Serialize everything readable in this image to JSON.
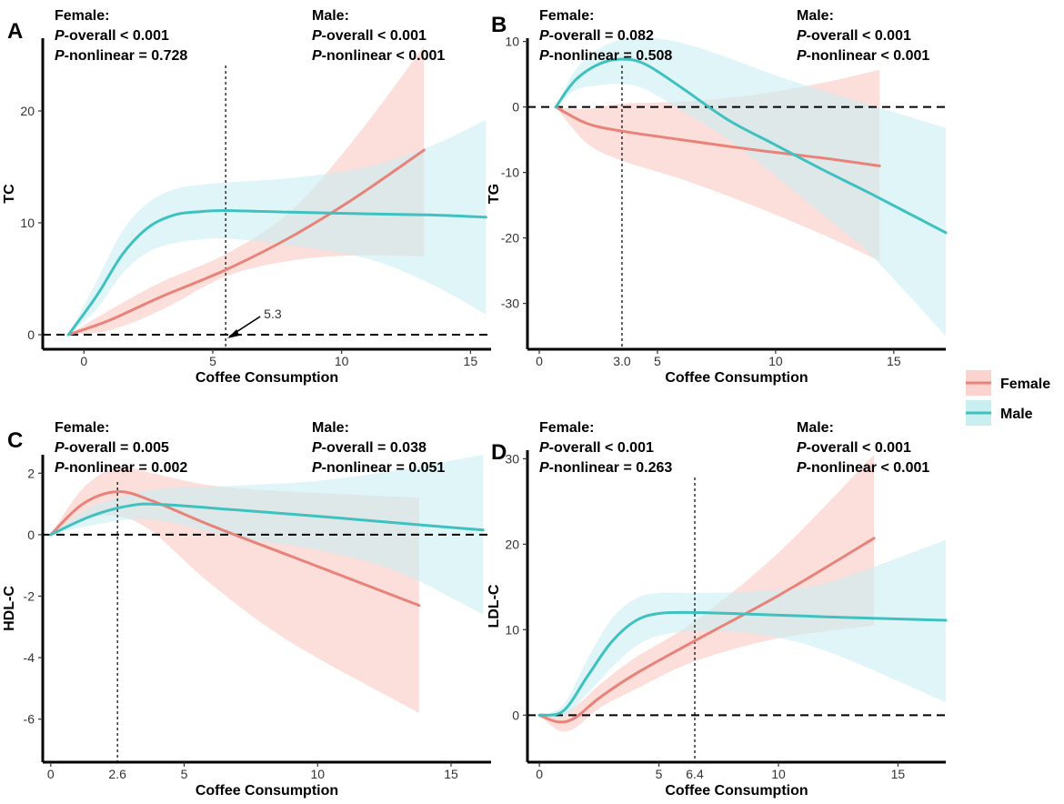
{
  "colors": {
    "female": "#e8837a",
    "male": "#3fc1c0",
    "female_band": "#fbd3cf",
    "male_band": "#c9eff1"
  },
  "legend": {
    "items": [
      "Female",
      "Male"
    ]
  },
  "chart_data": [
    {
      "type": "line",
      "panel_label": "A",
      "ylabel": "TC",
      "xlabel": "Coffee Consumption",
      "xlim": [
        -1.6,
        15.8
      ],
      "ylim": [
        -1.3,
        26.5
      ],
      "xticks": [
        0,
        5,
        10,
        15
      ],
      "yticks": [
        0,
        10,
        20
      ],
      "ref_x": 5.5,
      "ref_x_label": "",
      "annotation": "5.3",
      "stats": {
        "female": [
          "Female:",
          "P-overall < 0.001",
          "P-nonlinear = 0.728"
        ],
        "male": [
          "Male:",
          "P-overall < 0.001",
          "P-nonlinear < 0.001"
        ]
      },
      "series": [
        {
          "name": "Female",
          "x": [
            -0.6,
            1,
            3,
            5.5,
            8,
            10.5,
            13.2
          ],
          "y": [
            0,
            1.3,
            3.4,
            5.8,
            8.7,
            12.2,
            16.5
          ],
          "lower": [
            0,
            0.4,
            2.2,
            5.2,
            6.6,
            7.1,
            7.0
          ],
          "upper": [
            0,
            2.2,
            4.7,
            7.2,
            11.0,
            17.5,
            25.8
          ]
        },
        {
          "name": "Male",
          "x": [
            -0.6,
            0.5,
            1.5,
            2.5,
            3.5,
            4.5,
            5.5,
            8,
            11,
            13.5,
            15.6
          ],
          "y": [
            0,
            3.5,
            7.2,
            9.6,
            10.7,
            11.0,
            11.1,
            10.95,
            10.8,
            10.7,
            10.5
          ],
          "lower": [
            0,
            2.3,
            5.5,
            7.4,
            8.2,
            8.5,
            8.6,
            8.0,
            6.8,
            4.5,
            1.8
          ],
          "upper": [
            0,
            4.8,
            9.3,
            11.8,
            13.0,
            13.4,
            13.6,
            14.0,
            15.0,
            16.9,
            19.2
          ]
        }
      ]
    },
    {
      "type": "line",
      "panel_label": "B",
      "ylabel": "TG",
      "xlabel": "Coffee Consumption",
      "xlim": [
        -0.5,
        17.2
      ],
      "ylim": [
        -37,
        10.5
      ],
      "xticks": [
        0,
        5,
        10,
        15
      ],
      "yticks": [
        10,
        0,
        -10,
        -20,
        -30
      ],
      "ref_x": 3.5,
      "ref_x_label": "3.0",
      "annotation": "",
      "stats": {
        "female": [
          "Female:",
          "P-overall = 0.082",
          "P-nonlinear = 0.508"
        ],
        "male": [
          "Male:",
          "P-overall < 0.001",
          "P-nonlinear < 0.001"
        ]
      },
      "series": [
        {
          "name": "Female",
          "x": [
            0.7,
            2,
            3.5,
            6,
            9,
            12,
            14.4
          ],
          "y": [
            0,
            -2.5,
            -3.7,
            -5,
            -6.5,
            -7.8,
            -9
          ],
          "lower": [
            0,
            -5.5,
            -8.2,
            -11,
            -15,
            -19.5,
            -23.5
          ],
          "upper": [
            0,
            -0.3,
            0.5,
            0.8,
            1.8,
            3.7,
            5.7
          ]
        },
        {
          "name": "Male",
          "x": [
            0.7,
            1.5,
            2.5,
            3.5,
            4.5,
            6,
            8,
            10,
            12,
            14,
            17.2
          ],
          "y": [
            0,
            4,
            6.5,
            7.3,
            6.5,
            3,
            -2,
            -5.8,
            -9.6,
            -13.2,
            -19.2
          ],
          "lower": [
            0,
            2.5,
            3.3,
            3.5,
            2.7,
            -0.5,
            -5,
            -10.5,
            -16.5,
            -22.5,
            -35
          ],
          "upper": [
            0,
            5.5,
            8.8,
            10.3,
            10.6,
            9.8,
            7.5,
            4.8,
            2.5,
            0.3,
            -3.2
          ]
        }
      ]
    },
    {
      "type": "line",
      "panel_label": "C",
      "ylabel": "HDL-C",
      "xlabel": "Coffee Consumption",
      "xlim": [
        -0.3,
        16.5
      ],
      "ylim": [
        -7.4,
        2.6
      ],
      "xticks": [
        0,
        5,
        10,
        15
      ],
      "yticks": [
        2,
        0,
        -2,
        -4,
        -6
      ],
      "ref_x": 2.5,
      "ref_x_label": "2.6",
      "annotation": "",
      "stats": {
        "female": [
          "Female:",
          "P-overall = 0.005",
          "P-nonlinear = 0.002"
        ],
        "male": [
          "Male:",
          "P-overall = 0.038",
          "P-nonlinear = 0.051"
        ]
      },
      "series": [
        {
          "name": "Female",
          "x": [
            0,
            1.2,
            2.5,
            3.8,
            6,
            9,
            13.8
          ],
          "y": [
            0,
            1.0,
            1.4,
            1.1,
            0.3,
            -0.7,
            -2.3
          ],
          "lower": [
            0,
            0.5,
            0.6,
            0.1,
            -1.6,
            -3.5,
            -5.8
          ],
          "upper": [
            0,
            1.5,
            2.2,
            2.0,
            1.6,
            1.4,
            1.2
          ]
        },
        {
          "name": "Male",
          "x": [
            0,
            1.5,
            3,
            4.2,
            7,
            10,
            13,
            16.2
          ],
          "y": [
            0,
            0.6,
            0.95,
            0.98,
            0.8,
            0.6,
            0.38,
            0.15
          ],
          "lower": [
            0,
            0.3,
            0.5,
            0.45,
            -0.1,
            -0.5,
            -1.2,
            -2.6
          ],
          "upper": [
            0,
            0.9,
            1.3,
            1.5,
            1.6,
            1.75,
            2.1,
            2.6
          ]
        }
      ]
    },
    {
      "type": "line",
      "panel_label": "D",
      "ylabel": "LDL-C",
      "xlabel": "Coffee Consumption",
      "xlim": [
        -0.5,
        17
      ],
      "ylim": [
        -5.5,
        31
      ],
      "xticks": [
        0,
        5,
        10,
        15
      ],
      "yticks": [
        0,
        10,
        20,
        30
      ],
      "ref_x": 6.5,
      "ref_x_label": "6.4",
      "annotation": "",
      "stats": {
        "female": [
          "Female:",
          "P-overall < 0.001",
          "P-nonlinear = 0.263"
        ],
        "male": [
          "Male:",
          "P-overall < 0.001",
          "P-nonlinear < 0.001"
        ]
      },
      "series": [
        {
          "name": "Female",
          "x": [
            0,
            0.8,
            1.5,
            2.5,
            4,
            6.5,
            10,
            14
          ],
          "y": [
            0,
            -0.8,
            -0.3,
            2,
            4.8,
            8.7,
            14,
            20.7
          ],
          "lower": [
            0,
            -1.8,
            -1.5,
            0.8,
            3.0,
            6.3,
            9.0,
            10.5
          ],
          "upper": [
            0,
            0.3,
            1.0,
            3.5,
            6.7,
            11.0,
            19.0,
            30.5
          ]
        },
        {
          "name": "Male",
          "x": [
            0,
            1,
            2,
            3,
            4,
            5,
            6.5,
            9,
            12,
            17
          ],
          "y": [
            0,
            0.5,
            4.5,
            8.5,
            11,
            11.9,
            12,
            11.8,
            11.5,
            11.1
          ],
          "lower": [
            0,
            -0.2,
            2.5,
            5.5,
            8.0,
            9.3,
            9.8,
            9.5,
            7.5,
            1.5
          ],
          "upper": [
            0,
            1.2,
            6.5,
            11.2,
            13.6,
            14.3,
            14.3,
            14.5,
            15.5,
            20.5
          ]
        }
      ]
    }
  ]
}
